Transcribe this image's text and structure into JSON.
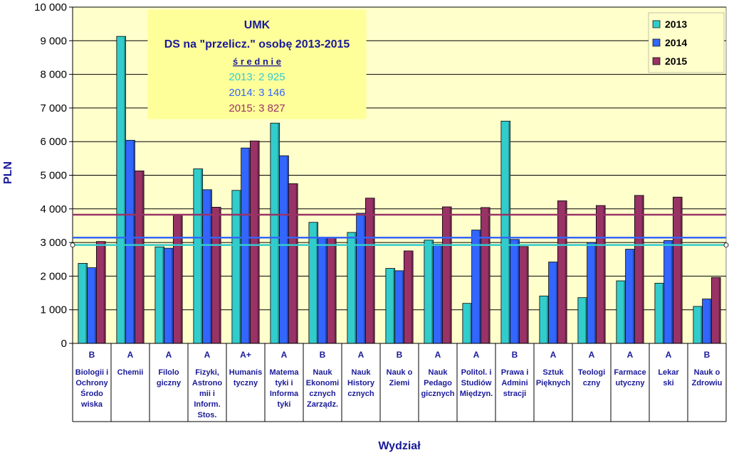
{
  "chart_data": {
    "type": "bar",
    "annotation": {
      "title": "UMK",
      "subtitle": "DS na \"przelicz.\" osobę 2013-2015",
      "averages_heading": "ś r e d n i e",
      "averages": [
        {
          "label": "2013:  2 925",
          "value": 2925,
          "color": "#33cccc"
        },
        {
          "label": "2014:  3 146",
          "value": 3146,
          "color": "#3366ff"
        },
        {
          "label": "2015:  3 827",
          "value": 3827,
          "color": "#993366"
        }
      ]
    },
    "xlabel": "Wydział",
    "ylabel": "PLN",
    "ylim": [
      0,
      10000
    ],
    "yticks": [
      "0",
      "1 000",
      "2 000",
      "3 000",
      "4 000",
      "5 000",
      "6 000",
      "7 000",
      "8 000",
      "9 000",
      "10 000"
    ],
    "ytick_values": [
      0,
      1000,
      2000,
      3000,
      4000,
      5000,
      6000,
      7000,
      8000,
      9000,
      10000
    ],
    "grid": true,
    "legend_position": "top-right",
    "categories": [
      {
        "grade": "B",
        "name": [
          "Biologii i",
          "Ochrony",
          "Środo",
          "wiska"
        ]
      },
      {
        "grade": "A",
        "name": [
          "Chemii"
        ]
      },
      {
        "grade": "A",
        "name": [
          "Filolo",
          "giczny"
        ]
      },
      {
        "grade": "A",
        "name": [
          "Fizyki,",
          "Astrono",
          "mii i",
          "Inform.",
          "Stos."
        ]
      },
      {
        "grade": "A+",
        "name": [
          "Humanis",
          "tyczny"
        ]
      },
      {
        "grade": "A",
        "name": [
          "Matema",
          "tyki i",
          "Informa",
          "tyki"
        ]
      },
      {
        "grade": "B",
        "name": [
          "Nauk",
          "Ekonomi",
          "cznych",
          "Zarządz."
        ]
      },
      {
        "grade": "A",
        "name": [
          "Nauk",
          "History",
          "cznych"
        ]
      },
      {
        "grade": "B",
        "name": [
          "Nauk o",
          "Ziemi"
        ]
      },
      {
        "grade": "A",
        "name": [
          "Nauk",
          "Pedago",
          "gicznych"
        ]
      },
      {
        "grade": "A",
        "name": [
          "Politol. i",
          "Studiów",
          "Międzyn."
        ]
      },
      {
        "grade": "B",
        "name": [
          "Prawa i",
          "Admini",
          "stracji"
        ]
      },
      {
        "grade": "A",
        "name": [
          "Sztuk",
          "Pięknych"
        ]
      },
      {
        "grade": "A",
        "name": [
          "Teologi",
          "czny"
        ]
      },
      {
        "grade": "A",
        "name": [
          "Farmace",
          "utyczny"
        ]
      },
      {
        "grade": "A",
        "name": [
          "Lekar",
          "ski"
        ]
      },
      {
        "grade": "B",
        "name": [
          "Nauk o",
          "Zdrowiu"
        ]
      }
    ],
    "series": [
      {
        "name": "2013",
        "color": "#33cccc",
        "values": [
          2380,
          9130,
          2870,
          5190,
          4550,
          6550,
          3600,
          3300,
          2230,
          3070,
          1190,
          6610,
          1410,
          1360,
          1860,
          1790,
          1100
        ]
      },
      {
        "name": "2014",
        "color": "#3366ff",
        "values": [
          2250,
          6040,
          2830,
          4570,
          5810,
          5580,
          3150,
          3870,
          2160,
          2950,
          3370,
          3090,
          2420,
          3000,
          2800,
          3060,
          1320
        ]
      },
      {
        "name": "2015",
        "color": "#993366",
        "values": [
          3030,
          5130,
          3810,
          4050,
          6020,
          4750,
          3150,
          4320,
          2750,
          4060,
          4040,
          2880,
          4240,
          4100,
          4400,
          4350,
          1960
        ]
      }
    ],
    "colors": {
      "plot_bg": "#ffffcc",
      "gridline": "#000000",
      "text": "#1a1a99",
      "annotation_bg": "#ffff99"
    }
  }
}
